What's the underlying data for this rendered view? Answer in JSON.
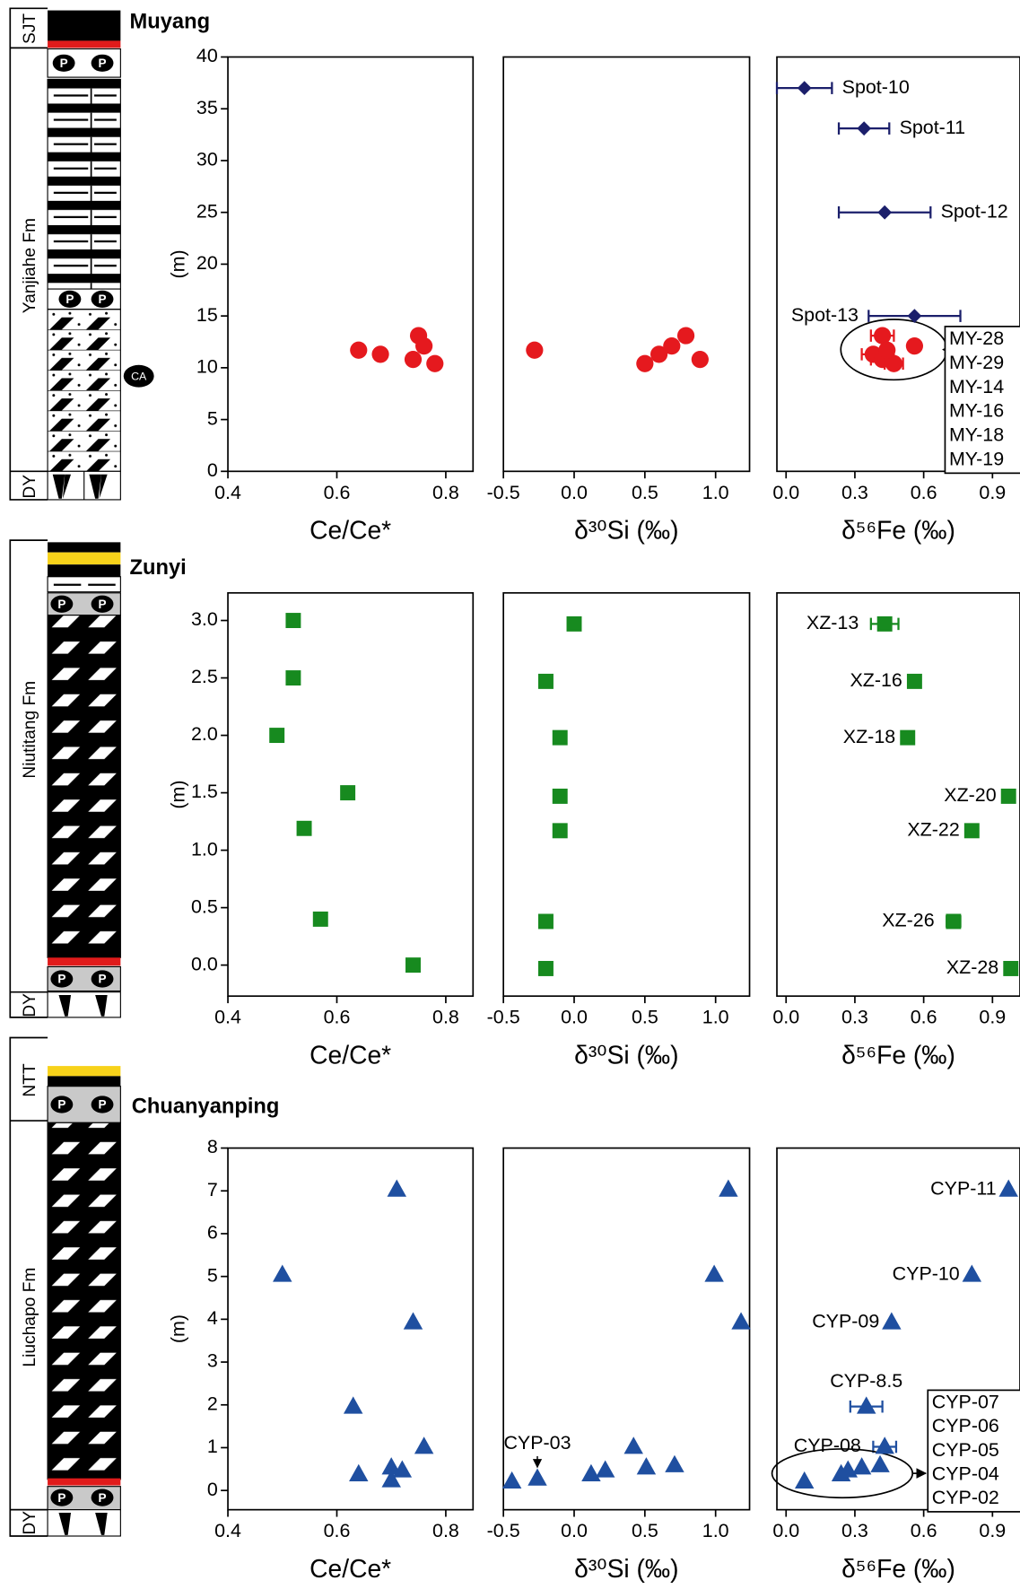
{
  "sections": [
    {
      "name": "Muyang",
      "units": [
        "SJT",
        "Yanjiahe Fm",
        "DY"
      ],
      "symbols": [
        "P",
        "CA"
      ]
    },
    {
      "name": "Zunyi",
      "units": [
        "Niutitang Fm",
        "DY"
      ],
      "symbols": [
        "P"
      ]
    },
    {
      "name": "Chuanyanping",
      "units": [
        "NTT",
        "Liuchapo Fm",
        "DY"
      ],
      "symbols": [
        "P"
      ]
    }
  ],
  "chart_data": [
    {
      "type": "scatter",
      "xlabel": "Ce/Ce*",
      "ylabel": "(m)",
      "xlim": [
        0.4,
        0.85
      ],
      "xticks": [
        0.4,
        0.6,
        0.8
      ],
      "ylim": [
        0,
        40
      ],
      "yticks": [
        0,
        5,
        10,
        15,
        20,
        25,
        30,
        35,
        40
      ],
      "series": [
        {
          "color": "#e5191e",
          "marker": "circle",
          "x": [
            0.64,
            0.68,
            0.75,
            0.76,
            0.74,
            0.78
          ],
          "values": [
            11.7,
            11.3,
            13.1,
            12.1,
            10.8,
            10.4
          ]
        }
      ]
    },
    {
      "type": "scatter",
      "xlabel": "δ³⁰Si (‰)",
      "xlim": [
        -0.5,
        1.24
      ],
      "xticks": [
        -0.5,
        {
          "value": 0,
          "label": "0.0"
        },
        0.5,
        {
          "value": 1,
          "label": "1.0"
        }
      ],
      "ylim": [
        0,
        40
      ],
      "series": [
        {
          "color": "#e5191e",
          "marker": "circle",
          "x": [
            -0.28,
            0.5,
            0.6,
            0.69,
            0.79,
            0.89
          ],
          "values": [
            11.7,
            10.4,
            11.3,
            12.1,
            13.1,
            10.8
          ]
        }
      ]
    },
    {
      "type": "scatter",
      "xlabel": "δ⁵⁶Fe (‰)",
      "xlim": [
        -0.04,
        1.02
      ],
      "xticks": [
        {
          "value": 0,
          "label": "0.0"
        },
        0.3,
        0.6,
        0.9
      ],
      "ylim": [
        0,
        40
      ],
      "series": [
        {
          "color": "#1b1f6b",
          "marker": "diamond",
          "x": [
            0.08,
            0.34,
            0.43,
            0.56
          ],
          "values": [
            37.0,
            33.1,
            25.0,
            15.0
          ],
          "xerr": [
            0.12,
            0.11,
            0.2,
            0.2
          ],
          "point_labels": [
            "Spot-10",
            "Spot-11",
            "Spot-12",
            "Spot-13"
          ]
        },
        {
          "color": "#e5191e",
          "marker": "circle",
          "x": [
            0.42,
            0.38,
            0.56,
            0.42,
            0.47,
            0.44
          ],
          "values": [
            13.1,
            11.3,
            12.1,
            10.8,
            10.4,
            11.7
          ],
          "xerr": [
            0.05,
            0.05,
            null,
            0.05,
            0.04,
            null
          ],
          "group_labels": [
            "MY-28",
            "MY-29",
            "MY-14",
            "MY-16",
            "MY-18",
            "MY-19"
          ]
        }
      ]
    },
    {
      "type": "scatter",
      "xlabel": "Ce/Ce*",
      "ylabel": "(m)",
      "xlim": [
        0.4,
        0.85
      ],
      "xticks": [
        0.4,
        0.6,
        0.8
      ],
      "ylim": [
        -0.27,
        3.24
      ],
      "yticks": [
        {
          "value": 0,
          "label": "0.0"
        },
        0.5,
        {
          "value": 1,
          "label": "1.0"
        },
        1.5,
        {
          "value": 2,
          "label": "2.0"
        },
        2.5,
        {
          "value": 3,
          "label": "3.0"
        }
      ],
      "series": [
        {
          "color": "#178a1f",
          "marker": "square",
          "x": [
            0.52,
            0.52,
            0.49,
            0.62,
            0.54,
            0.57,
            0.74
          ],
          "values": [
            3.0,
            2.5,
            2.0,
            1.5,
            1.19,
            0.4,
            0.0
          ]
        }
      ]
    },
    {
      "type": "scatter",
      "xlabel": "δ³⁰Si (‰)",
      "xlim": [
        -0.5,
        1.24
      ],
      "xticks": [
        -0.5,
        {
          "value": 0,
          "label": "0.0"
        },
        0.5,
        {
          "value": 1,
          "label": "1.0"
        }
      ],
      "ylim": [
        -0.27,
        3.24
      ],
      "series": [
        {
          "color": "#178a1f",
          "marker": "square",
          "x": [
            0.0,
            -0.2,
            -0.1,
            -0.1,
            -0.1,
            -0.2,
            -0.2
          ],
          "values": [
            2.97,
            2.47,
            1.98,
            1.47,
            1.17,
            0.38,
            -0.03
          ]
        }
      ]
    },
    {
      "type": "scatter",
      "xlabel": "δ⁵⁶Fe (‰)",
      "xlim": [
        -0.04,
        1.02
      ],
      "xticks": [
        {
          "value": 0,
          "label": "0.0"
        },
        0.3,
        0.6,
        0.9
      ],
      "ylim": [
        -0.27,
        3.24
      ],
      "series": [
        {
          "color": "#178a1f",
          "marker": "square",
          "x": [
            0.43,
            0.56,
            0.53,
            0.97,
            0.81,
            0.73,
            0.98
          ],
          "values": [
            2.97,
            2.47,
            1.98,
            1.47,
            1.17,
            0.38,
            -0.03
          ],
          "xerr": [
            0.06,
            null,
            null,
            null,
            null,
            0.03,
            null
          ],
          "point_labels": [
            "XZ-13",
            "XZ-16",
            "XZ-18",
            "XZ-20",
            "XZ-22",
            "XZ-26",
            "XZ-28"
          ]
        }
      ]
    },
    {
      "type": "scatter",
      "xlabel": "Ce/Ce*",
      "ylabel": "(m)",
      "xlim": [
        0.4,
        0.85
      ],
      "xticks": [
        0.4,
        0.6,
        0.8
      ],
      "ylim": [
        -0.45,
        8
      ],
      "yticks": [
        0,
        1,
        2,
        3,
        4,
        5,
        6,
        7,
        8
      ],
      "series": [
        {
          "color": "#1f4fa0",
          "marker": "triangle",
          "x": [
            0.5,
            0.71,
            0.74,
            0.63,
            0.76,
            0.64,
            0.7,
            0.72,
            0.7
          ],
          "values": [
            5.04,
            7.03,
            3.93,
            1.96,
            1.02,
            0.38,
            0.54,
            0.47,
            0.24
          ]
        }
      ]
    },
    {
      "type": "scatter",
      "xlabel": "δ³⁰Si (‰)",
      "xlim": [
        -0.5,
        1.24
      ],
      "xticks": [
        -0.5,
        {
          "value": 0,
          "label": "0.0"
        },
        0.5,
        {
          "value": 1,
          "label": "1.0"
        }
      ],
      "ylim": [
        -0.45,
        8
      ],
      "series": [
        {
          "color": "#1f4fa0",
          "marker": "triangle",
          "x": [
            1.09,
            0.99,
            1.18,
            -0.44,
            -0.26,
            0.12,
            0.22,
            0.42,
            0.51,
            0.71
          ],
          "values": [
            7.03,
            5.04,
            3.93,
            0.21,
            0.28,
            0.38,
            0.47,
            1.02,
            0.54,
            0.59
          ],
          "point_labels": [
            null,
            null,
            null,
            null,
            "CYP-03",
            null,
            null,
            null,
            null,
            null
          ]
        }
      ]
    },
    {
      "type": "scatter",
      "xlabel": "δ⁵⁶Fe (‰)",
      "xlim": [
        -0.04,
        1.02
      ],
      "xticks": [
        {
          "value": 0,
          "label": "0.0"
        },
        0.3,
        0.6,
        0.9
      ],
      "ylim": [
        -0.45,
        8
      ],
      "series": [
        {
          "color": "#1f4fa0",
          "marker": "triangle",
          "x": [
            0.97,
            0.81,
            0.46,
            0.35,
            0.43
          ],
          "values": [
            7.03,
            5.04,
            3.93,
            1.96,
            1.02
          ],
          "xerr": [
            null,
            null,
            null,
            0.07,
            0.05
          ],
          "point_labels": [
            "CYP-11",
            "CYP-10",
            "CYP-09",
            "CYP-8.5",
            "CYP-08"
          ]
        },
        {
          "color": "#1f4fa0",
          "marker": "triangle",
          "x": [
            0.08,
            0.24,
            0.27,
            0.33,
            0.41
          ],
          "values": [
            0.21,
            0.38,
            0.47,
            0.54,
            0.59
          ],
          "group_labels": [
            "CYP-07",
            "CYP-06",
            "CYP-05",
            "CYP-04",
            "CYP-02"
          ]
        }
      ]
    }
  ]
}
